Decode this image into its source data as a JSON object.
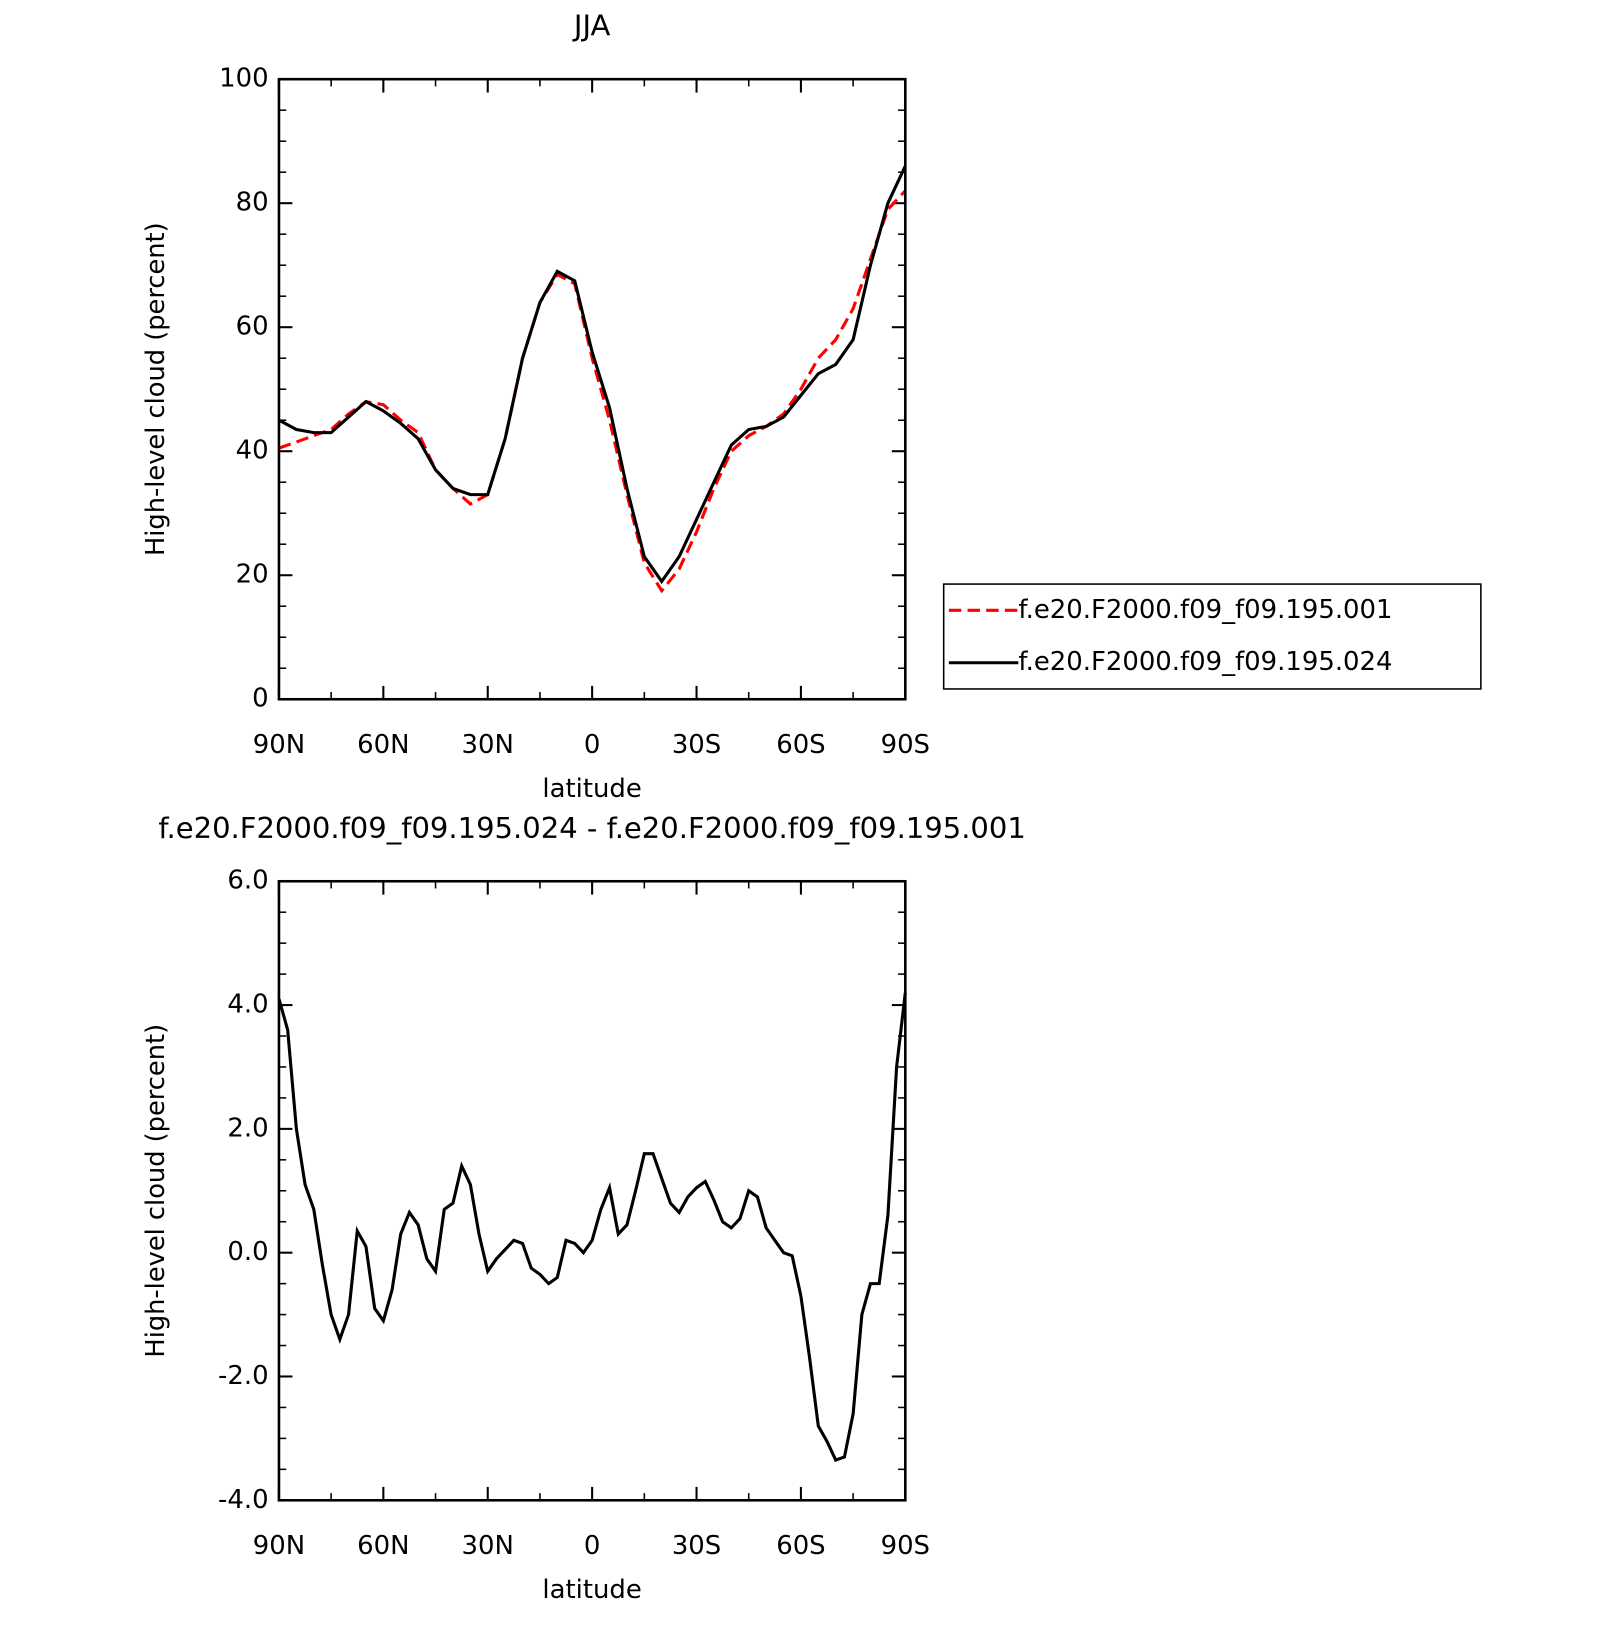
{
  "chart_data": [
    {
      "type": "line",
      "title": "JJA",
      "xlabel": "latitude",
      "ylabel": "High-level cloud (percent)",
      "x": [
        90,
        85,
        80,
        75,
        70,
        65,
        60,
        55,
        50,
        45,
        40,
        35,
        30,
        25,
        20,
        15,
        10,
        5,
        0,
        -5,
        -10,
        -15,
        -20,
        -25,
        -30,
        -35,
        -40,
        -45,
        -50,
        -55,
        -60,
        -65,
        -70,
        -75,
        -80,
        -85,
        -90
      ],
      "series": [
        {
          "name": "f.e20.F2000.f09_f09.195.001",
          "color": "#ff0000",
          "linestyle": "dashed",
          "values": [
            40.5,
            41.5,
            42.5,
            43.5,
            46,
            48,
            47.5,
            45,
            43,
            37,
            34,
            31.5,
            33,
            42,
            55,
            64,
            68.5,
            67,
            55,
            45,
            33,
            22,
            17.5,
            21,
            27,
            34,
            40,
            42.5,
            44,
            46,
            50,
            55,
            58,
            63,
            71,
            79,
            82
          ]
        },
        {
          "name": "f.e20.F2000.f09_f09.195.024",
          "color": "#000000",
          "linestyle": "solid",
          "values": [
            45,
            43.5,
            43,
            43,
            45.5,
            48,
            46.5,
            44.5,
            42,
            37,
            34,
            33,
            33,
            42,
            55,
            64,
            69,
            67.5,
            56,
            47,
            34,
            23,
            19,
            23,
            29,
            35,
            41,
            43.5,
            44,
            45.5,
            49,
            52.5,
            54,
            58,
            70,
            80,
            86
          ]
        }
      ],
      "xlim": [
        90,
        -90
      ],
      "xticks": [
        {
          "value": 90,
          "label": "90N"
        },
        {
          "value": 60,
          "label": "60N"
        },
        {
          "value": 30,
          "label": "30N"
        },
        0,
        {
          "value": -30,
          "label": "30S"
        },
        {
          "value": -60,
          "label": "60S"
        },
        {
          "value": -90,
          "label": "90S"
        }
      ],
      "xminorticks": [
        75,
        45,
        15,
        -15,
        -45,
        -75
      ],
      "ylim": [
        0,
        100
      ],
      "yticks": [
        0,
        20,
        40,
        60,
        80,
        100
      ],
      "yminorticks": [
        5,
        10,
        15,
        25,
        30,
        35,
        45,
        50,
        55,
        65,
        70,
        75,
        85,
        90,
        95
      ],
      "legend": "right"
    },
    {
      "type": "line",
      "title": "f.e20.F2000.f09_f09.195.024 - f.e20.F2000.f09_f09.195.001",
      "xlabel": "latitude",
      "ylabel": "High-level cloud (percent)",
      "x": [
        90,
        87.5,
        85,
        82.5,
        80,
        77.5,
        75,
        72.5,
        70,
        67.5,
        65,
        62.5,
        60,
        57.5,
        55,
        52.5,
        50,
        47.5,
        45,
        42.5,
        40,
        37.5,
        35,
        32.5,
        30,
        27.5,
        25,
        22.5,
        20,
        17.5,
        15,
        12.5,
        10,
        7.5,
        5,
        2.5,
        0,
        -2.5,
        -5,
        -7.5,
        -10,
        -12.5,
        -15,
        -17.5,
        -20,
        -22.5,
        -25,
        -27.5,
        -30,
        -32.5,
        -35,
        -37.5,
        -40,
        -42.5,
        -45,
        -47.5,
        -50,
        -52.5,
        -55,
        -57.5,
        -60,
        -62.5,
        -65,
        -67.5,
        -70,
        -72.5,
        -75,
        -77.5,
        -80,
        -82.5,
        -85,
        -87.5,
        -90
      ],
      "series": [
        {
          "color": "#000000",
          "linestyle": "solid",
          "values": [
            4.1,
            3.6,
            2.0,
            1.1,
            0.7,
            -0.2,
            -1.0,
            -1.4,
            -1.0,
            0.35,
            0.1,
            -0.9,
            -1.1,
            -0.6,
            0.3,
            0.65,
            0.45,
            -0.1,
            -0.3,
            0.7,
            0.8,
            1.4,
            1.1,
            0.3,
            -0.3,
            -0.1,
            0.05,
            0.2,
            0.15,
            -0.25,
            -0.35,
            -0.5,
            -0.4,
            0.2,
            0.15,
            0.0,
            0.2,
            0.7,
            1.05,
            0.3,
            0.45,
            1.0,
            1.6,
            1.6,
            1.2,
            0.8,
            0.65,
            0.9,
            1.05,
            1.15,
            0.85,
            0.5,
            0.4,
            0.55,
            1.0,
            0.9,
            0.4,
            0.2,
            0.0,
            -0.05,
            -0.7,
            -1.7,
            -2.8,
            -3.05,
            -3.35,
            -3.3,
            -2.6,
            -1.0,
            -0.5,
            -0.5,
            0.6,
            3.0,
            4.2
          ]
        }
      ],
      "xlim": [
        90,
        -90
      ],
      "xticks": [
        {
          "value": 90,
          "label": "90N"
        },
        {
          "value": 60,
          "label": "60N"
        },
        {
          "value": 30,
          "label": "30N"
        },
        0,
        {
          "value": -30,
          "label": "30S"
        },
        {
          "value": -60,
          "label": "60S"
        },
        {
          "value": -90,
          "label": "90S"
        }
      ],
      "xminorticks": [
        75,
        45,
        15,
        -15,
        -45,
        -75
      ],
      "ylim": [
        -4,
        6
      ],
      "yticks": [
        {
          "value": -4,
          "label": "-4.0"
        },
        {
          "value": -2,
          "label": "-2.0"
        },
        {
          "value": 0,
          "label": "0.0"
        },
        {
          "value": 2,
          "label": "2.0"
        },
        {
          "value": 4,
          "label": "4.0"
        },
        {
          "value": 6,
          "label": "6.0"
        }
      ],
      "yminorticks": [
        -3.5,
        -3,
        -2.5,
        -1.5,
        -1,
        -0.5,
        0.5,
        1,
        1.5,
        2.5,
        3,
        3.5,
        4.5,
        5,
        5.5
      ]
    }
  ]
}
